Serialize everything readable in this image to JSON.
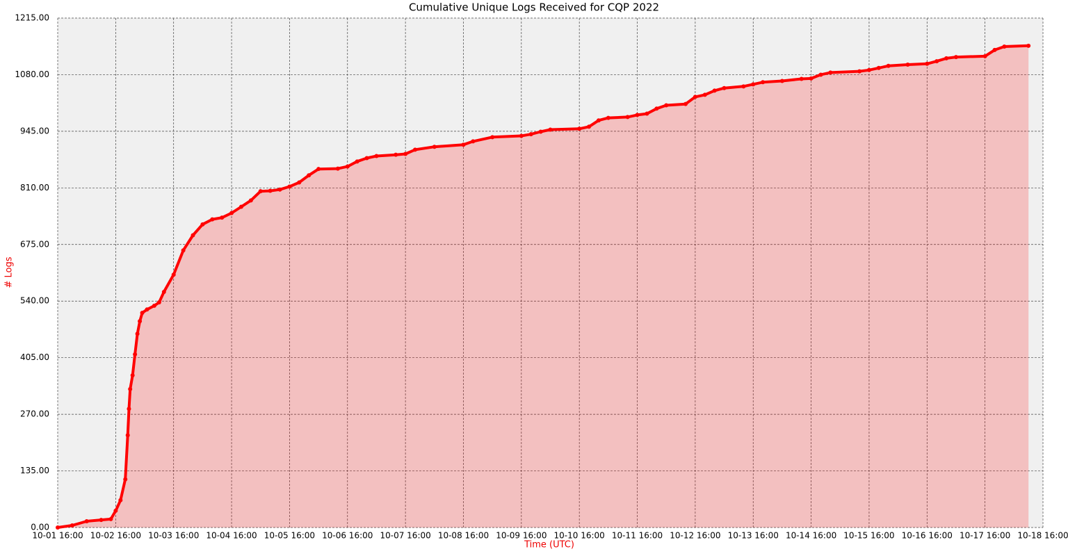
{
  "chart_data": {
    "type": "line",
    "title": "Cumulative Unique Logs Received for CQP 2022",
    "x_label": "Time (UTC)",
    "y_label": "# Logs",
    "area": true,
    "grid": true,
    "series": [
      {
        "color": "#ff0000",
        "x": [
          "10-01 16:00",
          "10-01 22:00",
          "10-02 04:00",
          "10-02 10:00",
          "10-02 14:00",
          "10-02 16:00",
          "10-02 18:00",
          "10-02 20:00",
          "10-02 21:00",
          "10-02 21:30",
          "10-02 22:00",
          "10-02 23:00",
          "10-03 00:00",
          "10-03 01:00",
          "10-03 02:00",
          "10-03 03:00",
          "10-03 05:00",
          "10-03 08:00",
          "10-03 10:00",
          "10-03 12:00",
          "10-03 16:00",
          "10-03 20:00",
          "10-04 00:00",
          "10-04 04:00",
          "10-04 08:00",
          "10-04 12:00",
          "10-04 16:00",
          "10-04 20:00",
          "10-05 00:00",
          "10-05 04:00",
          "10-05 08:00",
          "10-05 12:00",
          "10-05 16:00",
          "10-05 20:00",
          "10-06 00:00",
          "10-06 04:00",
          "10-06 12:00",
          "10-06 16:00",
          "10-06 20:00",
          "10-07 00:00",
          "10-07 04:00",
          "10-07 12:00",
          "10-07 16:00",
          "10-07 20:00",
          "10-08 04:00",
          "10-08 16:00",
          "10-08 20:00",
          "10-09 04:00",
          "10-09 16:00",
          "10-09 20:00",
          "10-10 00:00",
          "10-10 04:00",
          "10-10 16:00",
          "10-10 20:00",
          "10-11 00:00",
          "10-11 04:00",
          "10-11 12:00",
          "10-11 16:00",
          "10-11 20:00",
          "10-12 00:00",
          "10-12 04:00",
          "10-12 12:00",
          "10-12 16:00",
          "10-12 20:00",
          "10-13 00:00",
          "10-13 04:00",
          "10-13 12:00",
          "10-13 16:00",
          "10-13 20:00",
          "10-14 04:00",
          "10-14 12:00",
          "10-14 16:00",
          "10-14 20:00",
          "10-15 00:00",
          "10-15 12:00",
          "10-15 16:00",
          "10-15 20:00",
          "10-16 00:00",
          "10-16 08:00",
          "10-16 16:00",
          "10-16 20:00",
          "10-17 00:00",
          "10-17 04:00",
          "10-17 16:00",
          "10-17 20:00",
          "10-18 00:00",
          "10-18 10:00"
        ],
        "values": [
          0,
          5,
          15,
          18,
          20,
          40,
          65,
          115,
          220,
          283,
          330,
          363,
          413,
          462,
          492,
          512,
          520,
          529,
          537,
          562,
          603,
          661,
          697,
          723,
          735,
          739,
          750,
          765,
          780,
          802,
          803,
          806,
          813,
          823,
          840,
          855,
          856,
          861,
          873,
          881,
          886,
          889,
          891,
          901,
          908,
          913,
          921,
          931,
          934,
          938,
          944,
          949,
          951,
          956,
          971,
          977,
          979,
          984,
          987,
          999,
          1007,
          1010,
          1027,
          1032,
          1042,
          1048,
          1052,
          1057,
          1062,
          1065,
          1070,
          1071,
          1080,
          1085,
          1088,
          1091,
          1096,
          1101,
          1104,
          1106,
          1112,
          1119,
          1122,
          1124,
          1139,
          1147,
          1149
        ]
      }
    ],
    "xlim": [
      "10-01 16:00",
      "10-18 16:00"
    ],
    "xticks": [
      "10-01 16:00",
      "10-02 16:00",
      "10-03 16:00",
      "10-04 16:00",
      "10-05 16:00",
      "10-06 16:00",
      "10-07 16:00",
      "10-08 16:00",
      "10-09 16:00",
      "10-10 16:00",
      "10-11 16:00",
      "10-12 16:00",
      "10-13 16:00",
      "10-14 16:00",
      "10-15 16:00",
      "10-16 16:00",
      "10-17 16:00",
      "10-18 16:00"
    ],
    "ylim": [
      0,
      1215
    ],
    "yticks": [
      {
        "value": 0,
        "label": "0.00"
      },
      {
        "value": 135,
        "label": "135.00"
      },
      {
        "value": 270,
        "label": "270.00"
      },
      {
        "value": 405,
        "label": "405.00"
      },
      {
        "value": 540,
        "label": "540.00"
      },
      {
        "value": 675,
        "label": "675.00"
      },
      {
        "value": 810,
        "label": "810.00"
      },
      {
        "value": 945,
        "label": "945.00"
      },
      {
        "value": 1080,
        "label": "1080.00"
      },
      {
        "value": 1215,
        "label": "1215.00"
      }
    ]
  }
}
